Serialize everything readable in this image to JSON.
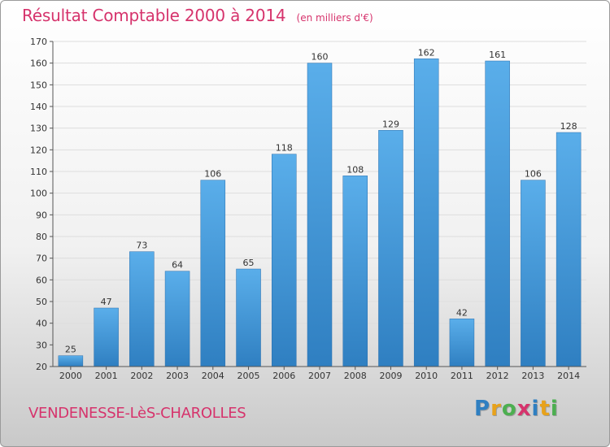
{
  "header": {
    "title": "Résultat Comptable 2000 à 2014",
    "subtitle": "(en milliers d'€)"
  },
  "footer": {
    "commune": "VENDENESSE-LèS-CHAROLLES"
  },
  "logo": {
    "text": "Proxiti",
    "letters": [
      {
        "ch": "P",
        "color": "#2f7fc1"
      },
      {
        "ch": "r",
        "color": "#e8a21a"
      },
      {
        "ch": "o",
        "color": "#4caf50"
      },
      {
        "ch": "x",
        "color": "#d6336c"
      },
      {
        "ch": "i",
        "color": "#2f7fc1"
      },
      {
        "ch": "t",
        "color": "#e8a21a"
      },
      {
        "ch": "i",
        "color": "#4caf50"
      }
    ]
  },
  "colors": {
    "accent": "#d6336c",
    "bar_light": "#5aaeea",
    "bar_dark": "#2f7fc1",
    "axis": "#555555",
    "grid": "#dddddd"
  },
  "chart_data": {
    "type": "bar",
    "categories": [
      "2000",
      "2001",
      "2002",
      "2003",
      "2004",
      "2005",
      "2006",
      "2007",
      "2008",
      "2009",
      "2010",
      "2011",
      "2012",
      "2013",
      "2014"
    ],
    "values": [
      25,
      47,
      73,
      64,
      106,
      65,
      118,
      160,
      108,
      129,
      162,
      42,
      161,
      106,
      128
    ],
    "title": "Résultat Comptable 2000 à 2014",
    "ylim": [
      20,
      170
    ],
    "yticks": [
      20,
      30,
      40,
      50,
      60,
      70,
      80,
      90,
      100,
      110,
      120,
      130,
      140,
      150,
      160,
      170
    ],
    "grid": true,
    "data_labels": true
  }
}
